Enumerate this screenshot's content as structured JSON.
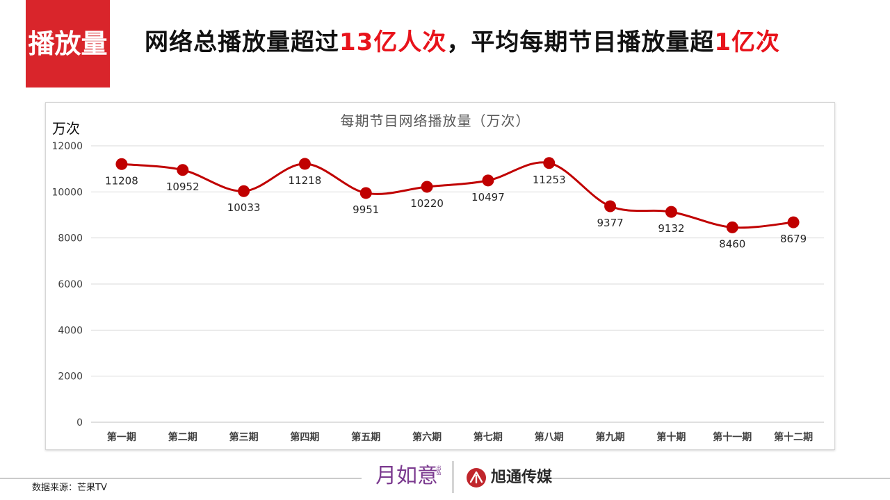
{
  "header": {
    "block_label": "播放量",
    "headline": {
      "part1": "网络总播放量超过",
      "highlight1": "13亿人次",
      "part2": "，平均每期节目播放量超",
      "highlight2": "1亿次"
    }
  },
  "colors": {
    "header_block": "#d9252b",
    "highlight": "#e8131b",
    "series_line": "#c00000",
    "logo_purple": "#7b3a8f",
    "logo_red": "#c0262c"
  },
  "chart_data": {
    "type": "line",
    "title": "每期节目网络播放量（万次）",
    "ylabel": "万次",
    "xlabel": "",
    "categories": [
      "第一期",
      "第二期",
      "第三期",
      "第四期",
      "第五期",
      "第六期",
      "第七期",
      "第八期",
      "第九期",
      "第十期",
      "第十一期",
      "第十二期"
    ],
    "series": [
      {
        "values": [
          11208,
          10952,
          10033,
          11218,
          9951,
          10220,
          10497,
          11253,
          9377,
          9132,
          8460,
          8679
        ]
      }
    ],
    "data_labels": [
      "11208",
      "10952",
      "10033",
      "11218",
      "9951",
      "10220",
      "10497",
      "11253",
      "9377",
      "9132",
      "8460",
      "8679"
    ],
    "ylim": [
      0,
      12000
    ],
    "yticks": [
      0,
      2000,
      4000,
      6000,
      8000,
      10000,
      12000
    ],
    "ytick_labels": [
      "0",
      "2000",
      "4000",
      "6000",
      "8000",
      "10000",
      "12000"
    ],
    "grid": true,
    "smooth": true,
    "markers": "circle"
  },
  "footer": {
    "source": "数据来源：芒果TV",
    "logo1_text": "月如意",
    "logo1_small": "出品",
    "logo2_text": "旭通传媒",
    "logo1_icon": "logo-yueruyi",
    "logo2_icon": "logo-xutong"
  }
}
